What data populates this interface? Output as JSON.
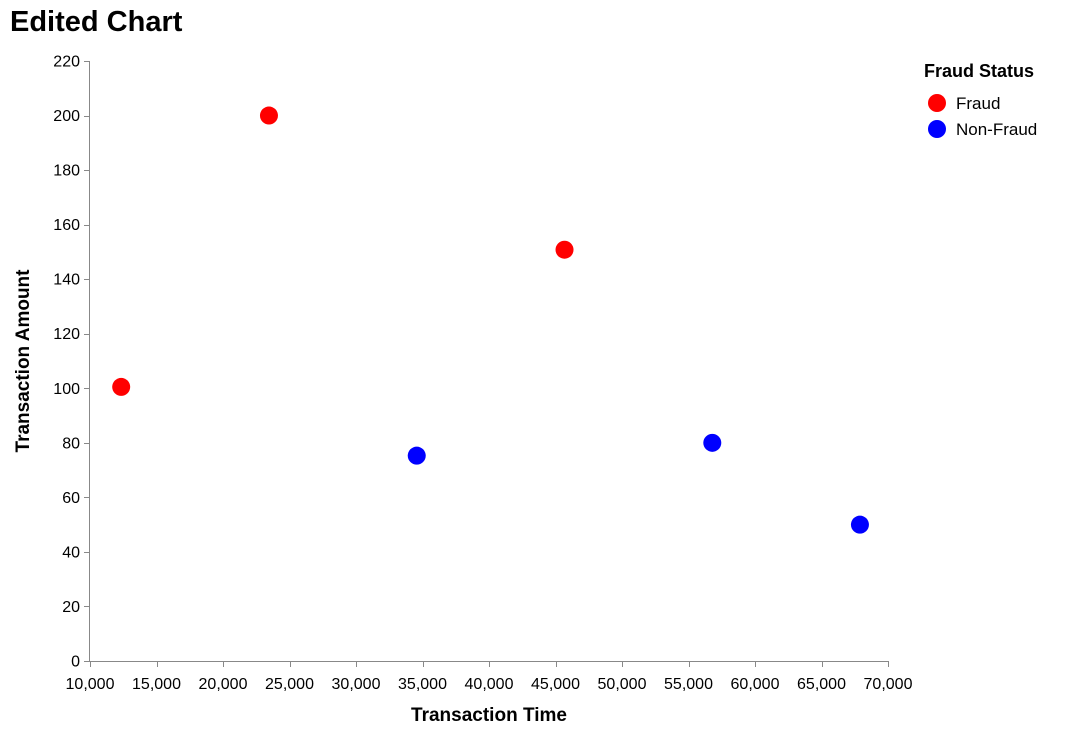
{
  "chart_data": {
    "type": "scatter",
    "title": "Edited Chart",
    "xlabel": "Transaction Time",
    "ylabel": "Transaction Amount",
    "xlim": [
      10000,
      70000
    ],
    "ylim": [
      0,
      220
    ],
    "x_ticks": [
      10000,
      15000,
      20000,
      25000,
      30000,
      35000,
      40000,
      45000,
      50000,
      55000,
      60000,
      65000,
      70000
    ],
    "x_tick_labels": [
      "10,000",
      "15,000",
      "20,000",
      "25,000",
      "30,000",
      "35,000",
      "40,000",
      "45,000",
      "50,000",
      "55,000",
      "60,000",
      "65,000",
      "70,000"
    ],
    "y_ticks": [
      0,
      20,
      40,
      60,
      80,
      100,
      120,
      140,
      160,
      180,
      200,
      220
    ],
    "y_tick_labels": [
      "0",
      "20",
      "40",
      "60",
      "80",
      "100",
      "120",
      "140",
      "160",
      "180",
      "200",
      "220"
    ],
    "grid": false,
    "legend": {
      "title": "Fraud Status",
      "placement": "top-right"
    },
    "series": [
      {
        "name": "Fraud",
        "color": "#ff0000",
        "points": [
          {
            "x": 12345,
            "y": 100.5
          },
          {
            "x": 23456,
            "y": 200.0
          },
          {
            "x": 45678,
            "y": 150.8
          }
        ]
      },
      {
        "name": "Non-Fraud",
        "color": "#0000ff",
        "points": [
          {
            "x": 34567,
            "y": 75.3
          },
          {
            "x": 56789,
            "y": 80.0
          },
          {
            "x": 67890,
            "y": 50.0
          }
        ]
      }
    ]
  }
}
